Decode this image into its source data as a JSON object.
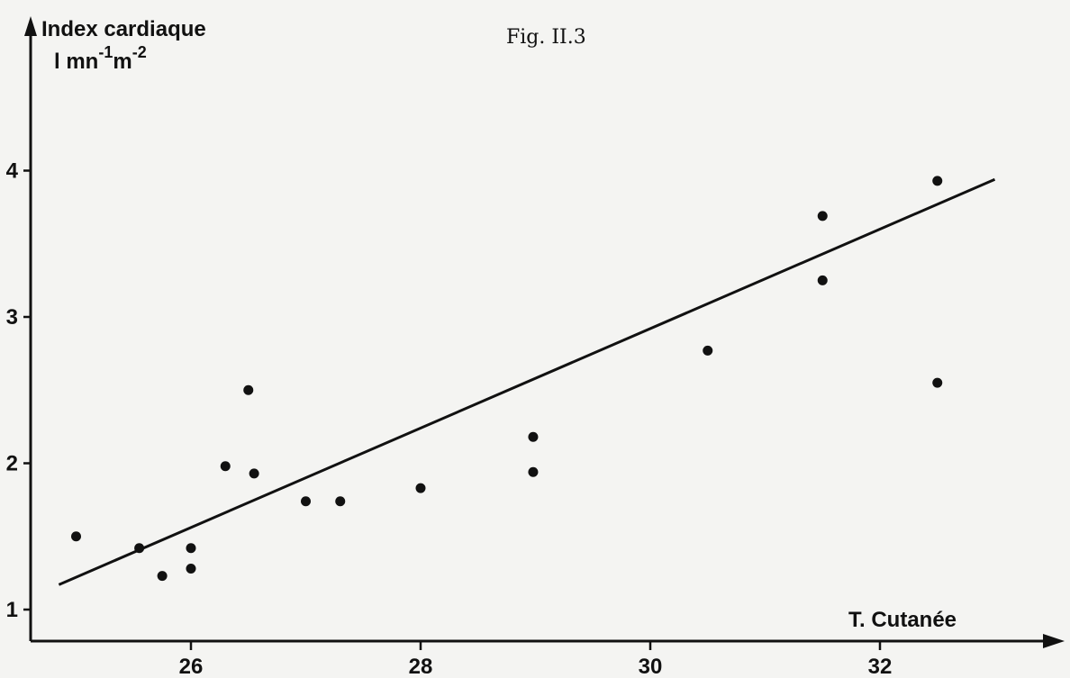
{
  "chart_data": {
    "type": "scatter",
    "title": "Fig. II.3",
    "ylabel_line1": "Index cardiaque",
    "ylabel_unit_base": "l mn",
    "ylabel_unit_exp1": "-1",
    "ylabel_unit_m": "m",
    "ylabel_unit_exp2": "-2",
    "xlabel": "T. Cutanée",
    "x_ticks": [
      26,
      28,
      30,
      32
    ],
    "y_ticks": [
      1,
      2,
      3,
      4
    ],
    "xlim": [
      24.8,
      33.6
    ],
    "ylim": [
      0.9,
      4.7
    ],
    "grid": false,
    "points": [
      {
        "x": 25.0,
        "y": 1.5
      },
      {
        "x": 25.55,
        "y": 1.42
      },
      {
        "x": 25.75,
        "y": 1.23
      },
      {
        "x": 26.0,
        "y": 1.42
      },
      {
        "x": 26.0,
        "y": 1.28
      },
      {
        "x": 26.3,
        "y": 1.98
      },
      {
        "x": 26.5,
        "y": 2.5
      },
      {
        "x": 26.55,
        "y": 1.93
      },
      {
        "x": 27.0,
        "y": 1.74
      },
      {
        "x": 27.3,
        "y": 1.74
      },
      {
        "x": 28.0,
        "y": 1.83
      },
      {
        "x": 28.98,
        "y": 2.18
      },
      {
        "x": 28.98,
        "y": 1.94
      },
      {
        "x": 30.5,
        "y": 2.77
      },
      {
        "x": 31.5,
        "y": 3.69
      },
      {
        "x": 31.5,
        "y": 3.25
      },
      {
        "x": 32.5,
        "y": 3.93
      },
      {
        "x": 32.5,
        "y": 2.55
      }
    ],
    "fit_line": {
      "x1": 24.85,
      "y1": 1.17,
      "x2": 33.0,
      "y2": 3.94
    }
  }
}
